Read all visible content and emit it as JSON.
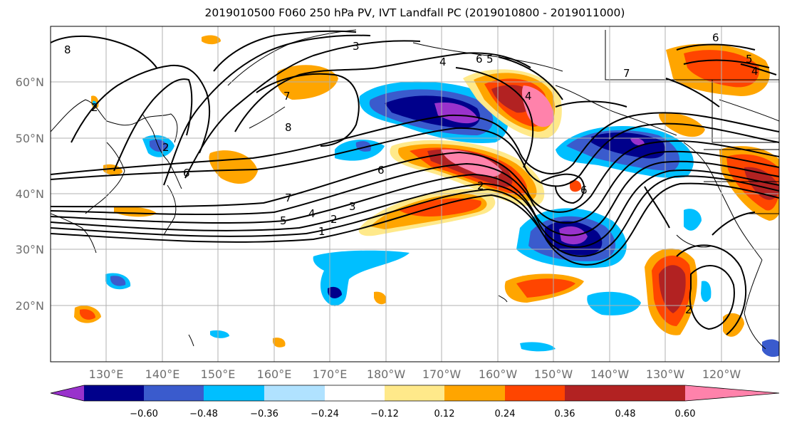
{
  "title": "2019010500 F060 250 hPa PV, IVT Landfall PC (2019010800 - 2019011000)",
  "lat_labels": [
    "60°N",
    "50°N",
    "40°N",
    "30°N",
    "20°N"
  ],
  "lon_labels": [
    "130°E",
    "140°E",
    "150°E",
    "160°E",
    "170°E",
    "180°W",
    "170°W",
    "160°W",
    "150°W",
    "140°W",
    "130°W",
    "120°W"
  ],
  "colorbar": {
    "tick_labels": [
      "−0.60",
      "−0.48",
      "−0.36",
      "−0.24",
      "−0.12",
      "0.12",
      "0.24",
      "0.36",
      "0.48",
      "0.60"
    ],
    "colors": [
      "#9932cc",
      "#00008b",
      "#3a5bcd",
      "#00bfff",
      "#b0e2ff",
      "#ffffff",
      "#ffe98a",
      "#ffa500",
      "#ff4500",
      "#b22222",
      "#ff82ab"
    ]
  },
  "contour_labels": [
    "8",
    "3",
    "4",
    "6",
    "7",
    "5",
    "4",
    "7",
    "6",
    "2",
    "2",
    "8",
    "6",
    "6",
    "7",
    "5",
    "4",
    "2",
    "3",
    "1",
    "6",
    "5",
    "4",
    "2",
    "2"
  ]
}
